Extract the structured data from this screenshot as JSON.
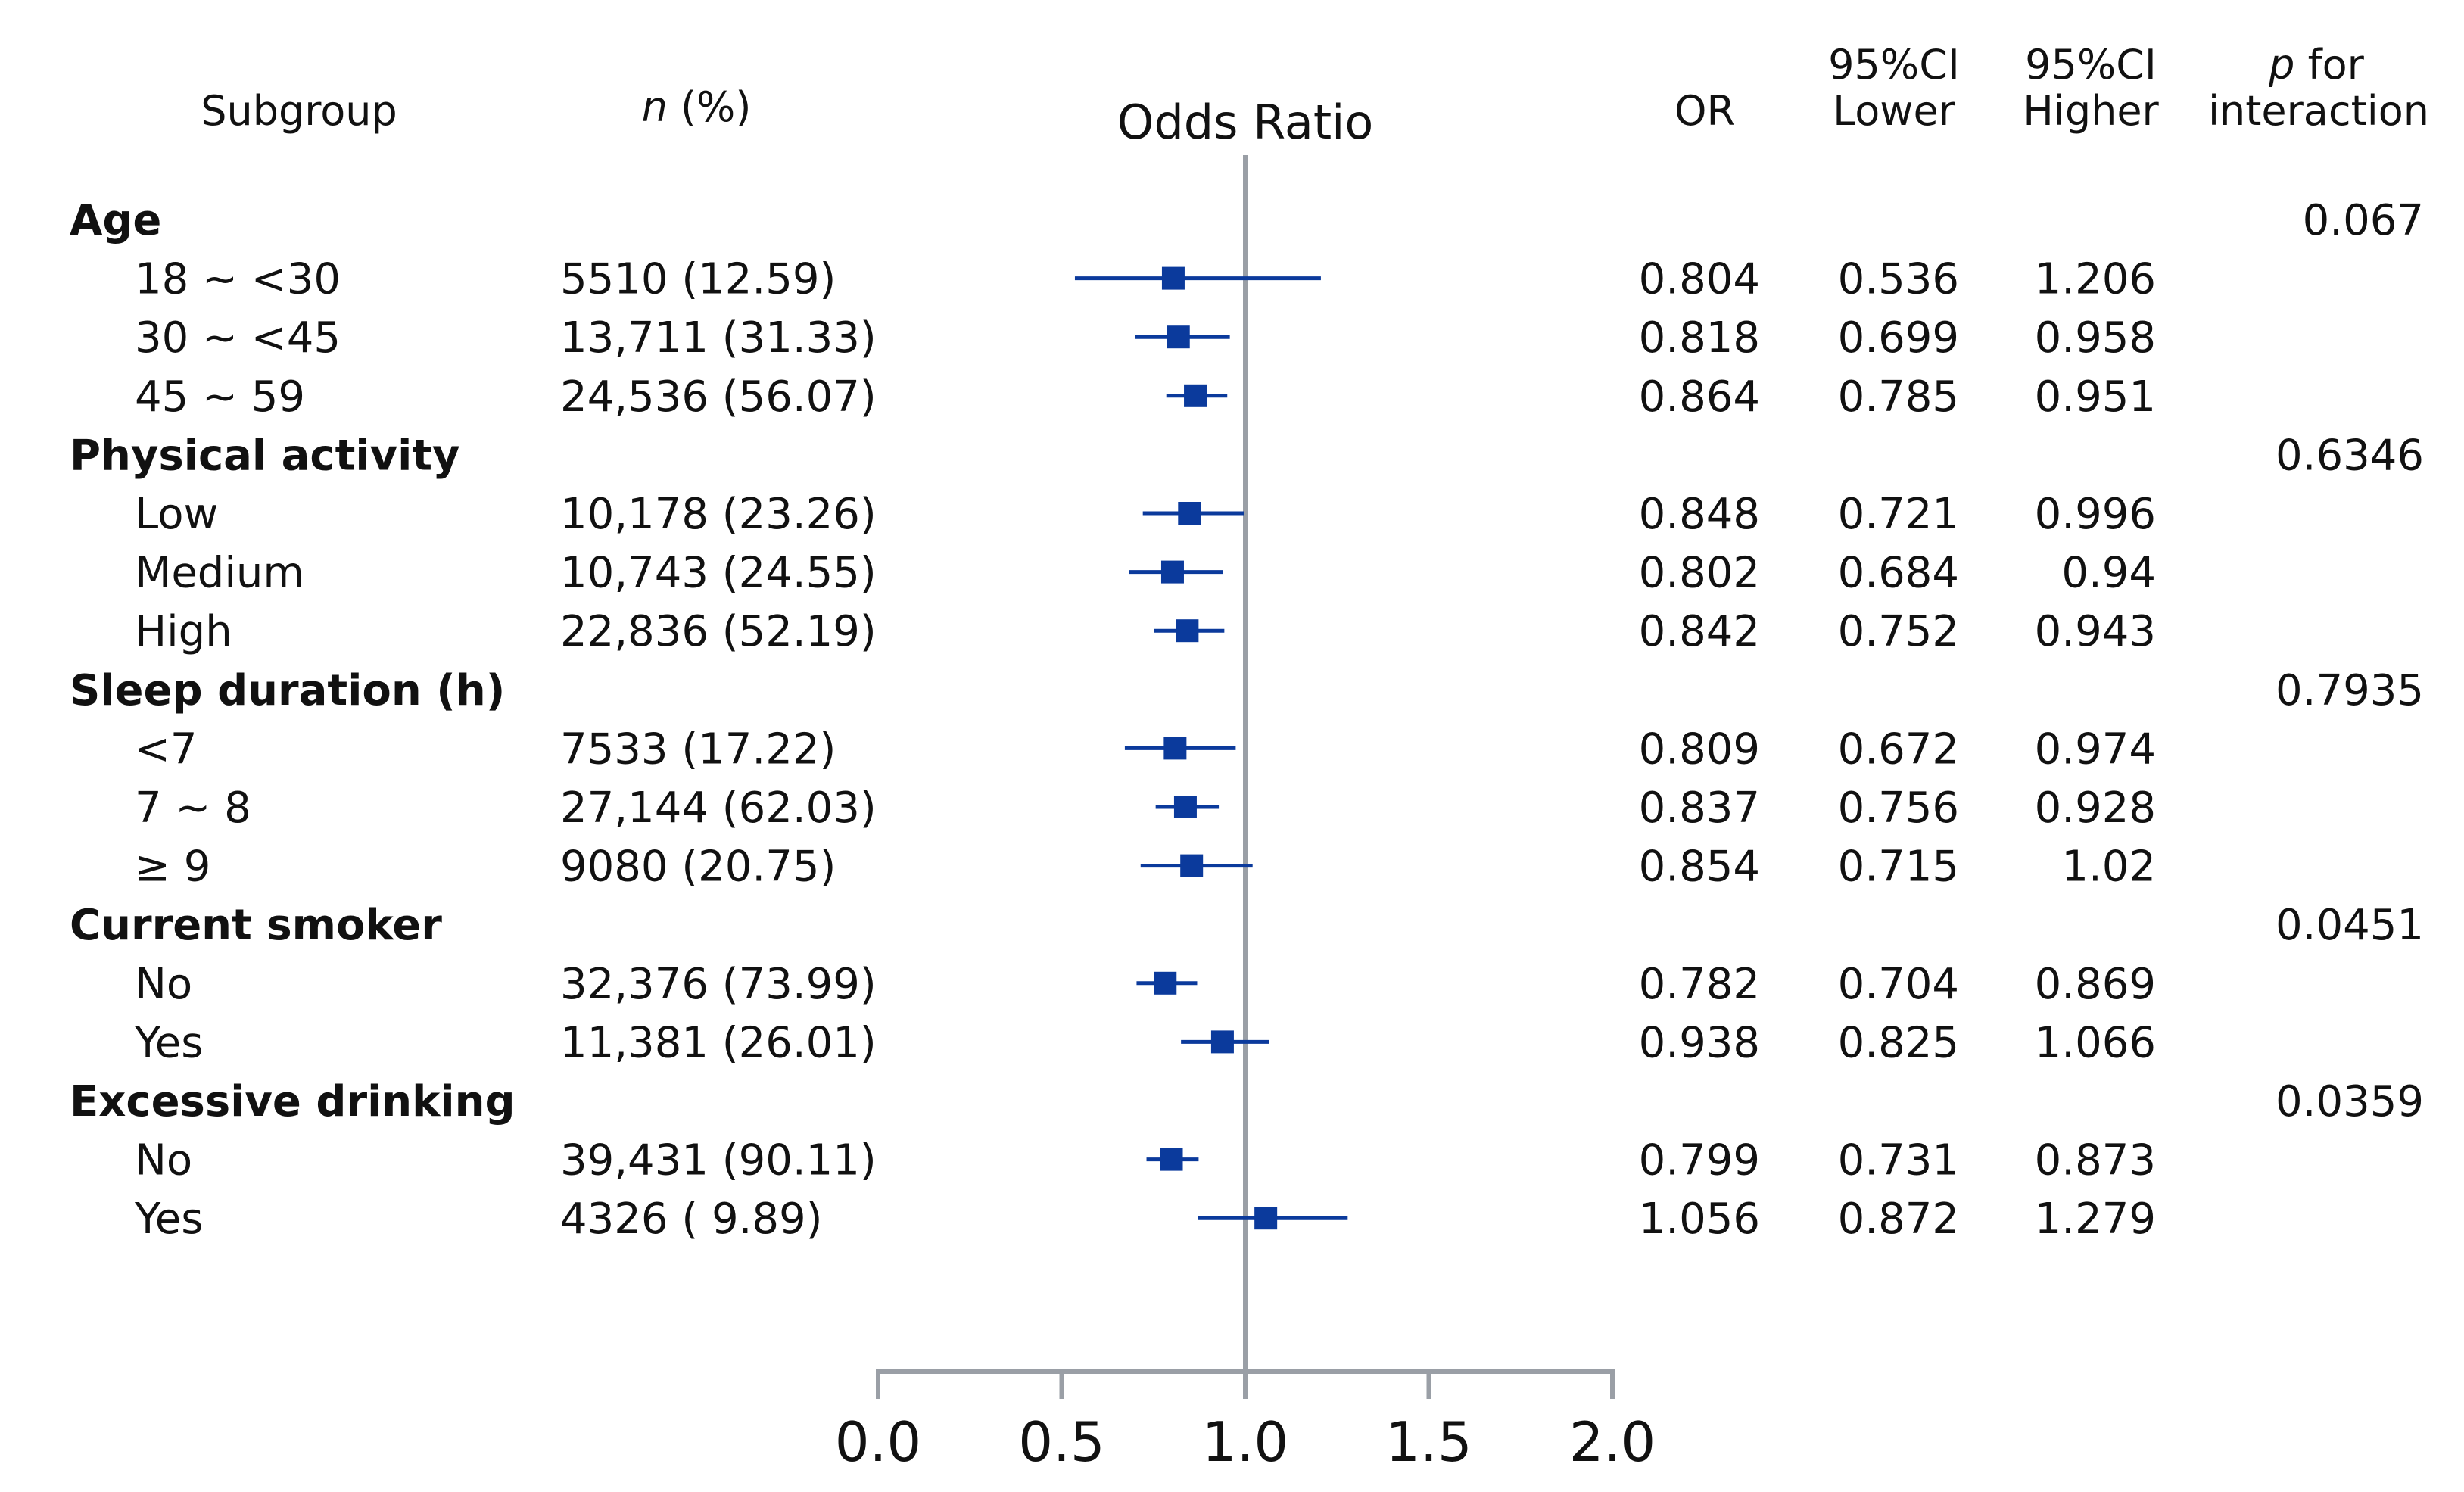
{
  "chart_data": {
    "type": "forest",
    "title": "Odds Ratio",
    "headers": {
      "subgroup": "Subgroup",
      "n_italic": "n",
      "n_rest": " (%)",
      "or": "OR",
      "ci_lower": [
        "95%CI",
        "Lower"
      ],
      "ci_higher": [
        "95%CI",
        "Higher"
      ],
      "p_italic": "p",
      "p_rest": " for",
      "p_line2": "interaction"
    },
    "xaxis": {
      "ticks": [
        "0.0",
        "0.5",
        "1.0",
        "1.5",
        "2.0"
      ],
      "xlim": [
        0,
        2
      ],
      "reference": 1.0
    },
    "colors": {
      "marker": "#0b3a9c",
      "reference_line": "#9a9fa6",
      "axis": "#9a9fa6"
    },
    "groups": [
      {
        "label": "Age",
        "p": "0.067",
        "rows": [
          {
            "label": "18 ~ <30",
            "n": "5510 (12.59)",
            "or": 0.804,
            "lower": 0.536,
            "upper": 1.206,
            "or_text": "0.804",
            "lower_text": "0.536",
            "upper_text": "1.206"
          },
          {
            "label": "30 ~ <45",
            "n": "13,711 (31.33)",
            "or": 0.818,
            "lower": 0.699,
            "upper": 0.958,
            "or_text": "0.818",
            "lower_text": "0.699",
            "upper_text": "0.958"
          },
          {
            "label": "45 ~ 59",
            "n": "24,536 (56.07)",
            "or": 0.864,
            "lower": 0.785,
            "upper": 0.951,
            "or_text": "0.864",
            "lower_text": "0.785",
            "upper_text": "0.951"
          }
        ]
      },
      {
        "label": "Physical activity",
        "p": "0.6346",
        "rows": [
          {
            "label": "Low",
            "n": "10,178 (23.26)",
            "or": 0.848,
            "lower": 0.721,
            "upper": 0.996,
            "or_text": "0.848",
            "lower_text": "0.721",
            "upper_text": "0.996"
          },
          {
            "label": "Medium",
            "n": "10,743 (24.55)",
            "or": 0.802,
            "lower": 0.684,
            "upper": 0.94,
            "or_text": "0.802",
            "lower_text": "0.684",
            "upper_text": "0.94"
          },
          {
            "label": "High",
            "n": "22,836 (52.19)",
            "or": 0.842,
            "lower": 0.752,
            "upper": 0.943,
            "or_text": "0.842",
            "lower_text": "0.752",
            "upper_text": "0.943"
          }
        ]
      },
      {
        "label": "Sleep duration (h)",
        "p": "0.7935",
        "rows": [
          {
            "label": "<7",
            "n": "7533 (17.22)",
            "or": 0.809,
            "lower": 0.672,
            "upper": 0.974,
            "or_text": "0.809",
            "lower_text": "0.672",
            "upper_text": "0.974"
          },
          {
            "label": "7 ~ 8",
            "n": "27,144 (62.03)",
            "or": 0.837,
            "lower": 0.756,
            "upper": 0.928,
            "or_text": "0.837",
            "lower_text": "0.756",
            "upper_text": "0.928"
          },
          {
            "label": "≥ 9",
            "n": "9080 (20.75)",
            "or": 0.854,
            "lower": 0.715,
            "upper": 1.02,
            "or_text": "0.854",
            "lower_text": "0.715",
            "upper_text": "1.02"
          }
        ]
      },
      {
        "label": "Current smoker",
        "p": "0.0451",
        "rows": [
          {
            "label": "No",
            "n": "32,376 (73.99)",
            "or": 0.782,
            "lower": 0.704,
            "upper": 0.869,
            "or_text": "0.782",
            "lower_text": "0.704",
            "upper_text": "0.869"
          },
          {
            "label": "Yes",
            "n": "11,381 (26.01)",
            "or": 0.938,
            "lower": 0.825,
            "upper": 1.066,
            "or_text": "0.938",
            "lower_text": "0.825",
            "upper_text": "1.066"
          }
        ]
      },
      {
        "label": "Excessive drinking",
        "p": "0.0359",
        "rows": [
          {
            "label": "No",
            "n": "39,431 (90.11)",
            "or": 0.799,
            "lower": 0.731,
            "upper": 0.873,
            "or_text": "0.799",
            "lower_text": "0.731",
            "upper_text": "0.873"
          },
          {
            "label": "Yes",
            "n": "4326 ( 9.89)",
            "or": 1.056,
            "lower": 0.872,
            "upper": 1.279,
            "or_text": "1.056",
            "lower_text": "0.872",
            "upper_text": "1.279"
          }
        ]
      }
    ]
  }
}
